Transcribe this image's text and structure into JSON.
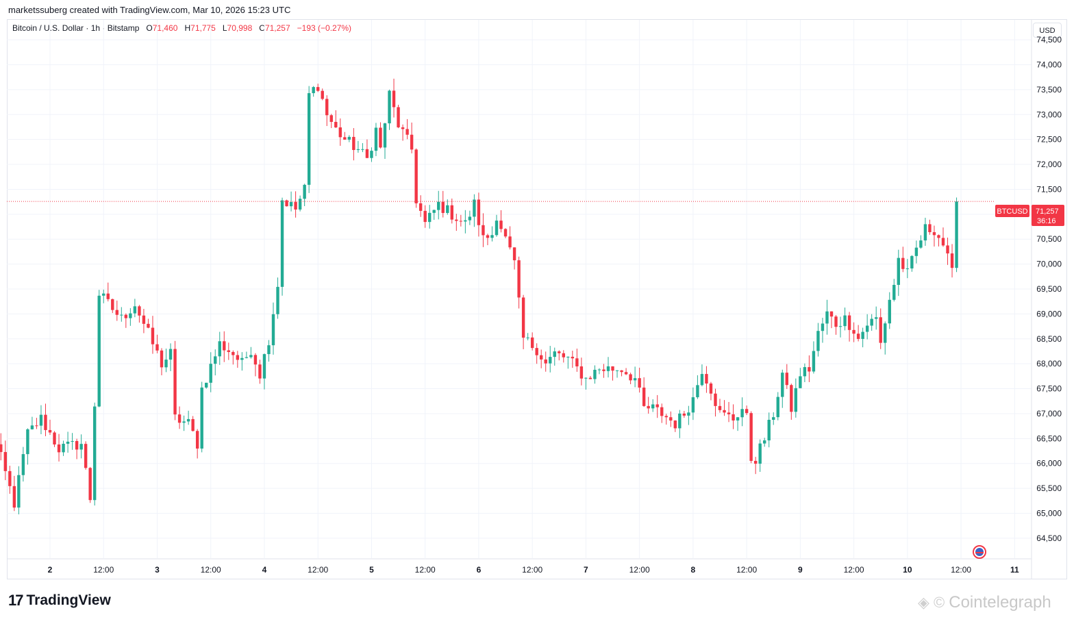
{
  "header": {
    "credit": "marketssuberg created with TradingView.com, Mar 10, 2026 15:23 UTC"
  },
  "legend": {
    "symbol": "Bitcoin / U.S. Dollar · 1h · Bitstamp",
    "open_label": "O",
    "open": "71,460",
    "high_label": "H",
    "high": "71,775",
    "low_label": "L",
    "low": "70,998",
    "close_label": "C",
    "close": "71,257",
    "change": "−193 (−0.27%)"
  },
  "currency_button": "USD",
  "price_tag": {
    "symbol": "BTCUSD",
    "price": "71,257",
    "countdown": "36:16"
  },
  "footer": {
    "logo_text": "TradingView",
    "logo_mark": "17",
    "watermark": "Cointelegraph"
  },
  "colors": {
    "up": "#22ab94",
    "down": "#f23645",
    "grid": "#f0f3fa",
    "axis_text": "#131722"
  },
  "chart_data": {
    "type": "candlestick",
    "ylim": [
      64100,
      74900
    ],
    "y_ticks": [
      64500,
      65000,
      65500,
      66000,
      66500,
      67000,
      67500,
      68000,
      68500,
      69000,
      69500,
      70000,
      70500,
      71000,
      71500,
      72000,
      72500,
      73000,
      73500,
      74000,
      74500
    ],
    "y_tick_labels": [
      "64,500",
      "65,000",
      "65,500",
      "66,000",
      "66,500",
      "67,000",
      "67,500",
      "68,000",
      "68,500",
      "69,000",
      "69,500",
      "70,000",
      "70,500",
      "71,000",
      "71,500",
      "72,000",
      "72,500",
      "73,000",
      "73,500",
      "74,000",
      "74,500"
    ],
    "x_ticks": [
      {
        "label": "2",
        "t": 14
      },
      {
        "label": "12:00",
        "t": 26
      },
      {
        "label": "3",
        "t": 38
      },
      {
        "label": "12:00",
        "t": 50
      },
      {
        "label": "4",
        "t": 62
      },
      {
        "label": "12:00",
        "t": 74
      },
      {
        "label": "5",
        "t": 86
      },
      {
        "label": "12:00",
        "t": 98
      },
      {
        "label": "6",
        "t": 110
      },
      {
        "label": "12:00",
        "t": 122
      },
      {
        "label": "7",
        "t": 134
      },
      {
        "label": "12:00",
        "t": 146
      },
      {
        "label": "8",
        "t": 158
      },
      {
        "label": "12:00",
        "t": 170
      },
      {
        "label": "9",
        "t": 182
      },
      {
        "label": "12:00",
        "t": 194
      },
      {
        "label": "10",
        "t": 206
      },
      {
        "label": "12:00",
        "t": 218
      },
      {
        "label": "11",
        "t": 230
      }
    ],
    "last_price": 71257,
    "keypoints": [
      [
        0,
        66850
      ],
      [
        3,
        66100
      ],
      [
        6,
        65200
      ],
      [
        9,
        66600
      ],
      [
        12,
        66900
      ],
      [
        16,
        66300
      ],
      [
        21,
        66400
      ],
      [
        23,
        65300
      ],
      [
        24,
        67200
      ],
      [
        25,
        69400
      ],
      [
        28,
        69100
      ],
      [
        30,
        68900
      ],
      [
        33,
        69200
      ],
      [
        36,
        68600
      ],
      [
        39,
        68000
      ],
      [
        41,
        68200
      ],
      [
        42,
        66900
      ],
      [
        45,
        66800
      ],
      [
        47,
        66400
      ],
      [
        48,
        67500
      ],
      [
        52,
        68400
      ],
      [
        55,
        68200
      ],
      [
        57,
        68000
      ],
      [
        59,
        68300
      ],
      [
        61,
        67800
      ],
      [
        63,
        68500
      ],
      [
        65,
        69600
      ],
      [
        66,
        71300
      ],
      [
        69,
        71100
      ],
      [
        71,
        71500
      ],
      [
        72,
        73400
      ],
      [
        74,
        73600
      ],
      [
        76,
        73000
      ],
      [
        78,
        72700
      ],
      [
        80,
        72500
      ],
      [
        83,
        72300
      ],
      [
        85,
        72100
      ],
      [
        87,
        72700
      ],
      [
        88,
        72300
      ],
      [
        90,
        73400
      ],
      [
        92,
        72800
      ],
      [
        95,
        72300
      ],
      [
        96,
        71300
      ],
      [
        98,
        70800
      ],
      [
        101,
        71200
      ],
      [
        104,
        71000
      ],
      [
        107,
        70800
      ],
      [
        109,
        71200
      ],
      [
        111,
        70500
      ],
      [
        113,
        70600
      ],
      [
        114,
        71000
      ],
      [
        116,
        70500
      ],
      [
        118,
        70000
      ],
      [
        119,
        69200
      ],
      [
        120,
        68500
      ],
      [
        123,
        68300
      ],
      [
        125,
        68000
      ],
      [
        127,
        68200
      ],
      [
        130,
        68100
      ],
      [
        132,
        67900
      ],
      [
        134,
        67700
      ],
      [
        137,
        67900
      ],
      [
        140,
        67900
      ],
      [
        142,
        67900
      ],
      [
        145,
        67700
      ],
      [
        147,
        67100
      ],
      [
        149,
        67100
      ],
      [
        151,
        67000
      ],
      [
        154,
        66800
      ],
      [
        156,
        67000
      ],
      [
        158,
        67300
      ],
      [
        160,
        67900
      ],
      [
        162,
        67500
      ],
      [
        164,
        67000
      ],
      [
        167,
        66900
      ],
      [
        169,
        67100
      ],
      [
        170,
        66900
      ],
      [
        171,
        66100
      ],
      [
        172,
        66100
      ],
      [
        174,
        66500
      ],
      [
        176,
        67000
      ],
      [
        178,
        67800
      ],
      [
        180,
        67100
      ],
      [
        182,
        67800
      ],
      [
        184,
        67900
      ],
      [
        186,
        68600
      ],
      [
        188,
        69000
      ],
      [
        190,
        68800
      ],
      [
        192,
        68900
      ],
      [
        194,
        68700
      ],
      [
        195,
        68500
      ],
      [
        197,
        68800
      ],
      [
        199,
        68900
      ],
      [
        200,
        68400
      ],
      [
        202,
        69300
      ],
      [
        203,
        69600
      ],
      [
        204,
        70100
      ],
      [
        206,
        69800
      ],
      [
        208,
        70300
      ],
      [
        210,
        70700
      ],
      [
        212,
        70700
      ],
      [
        214,
        70400
      ],
      [
        216,
        69800
      ],
      [
        217,
        71257
      ]
    ],
    "wick_pct": 0.0035
  }
}
